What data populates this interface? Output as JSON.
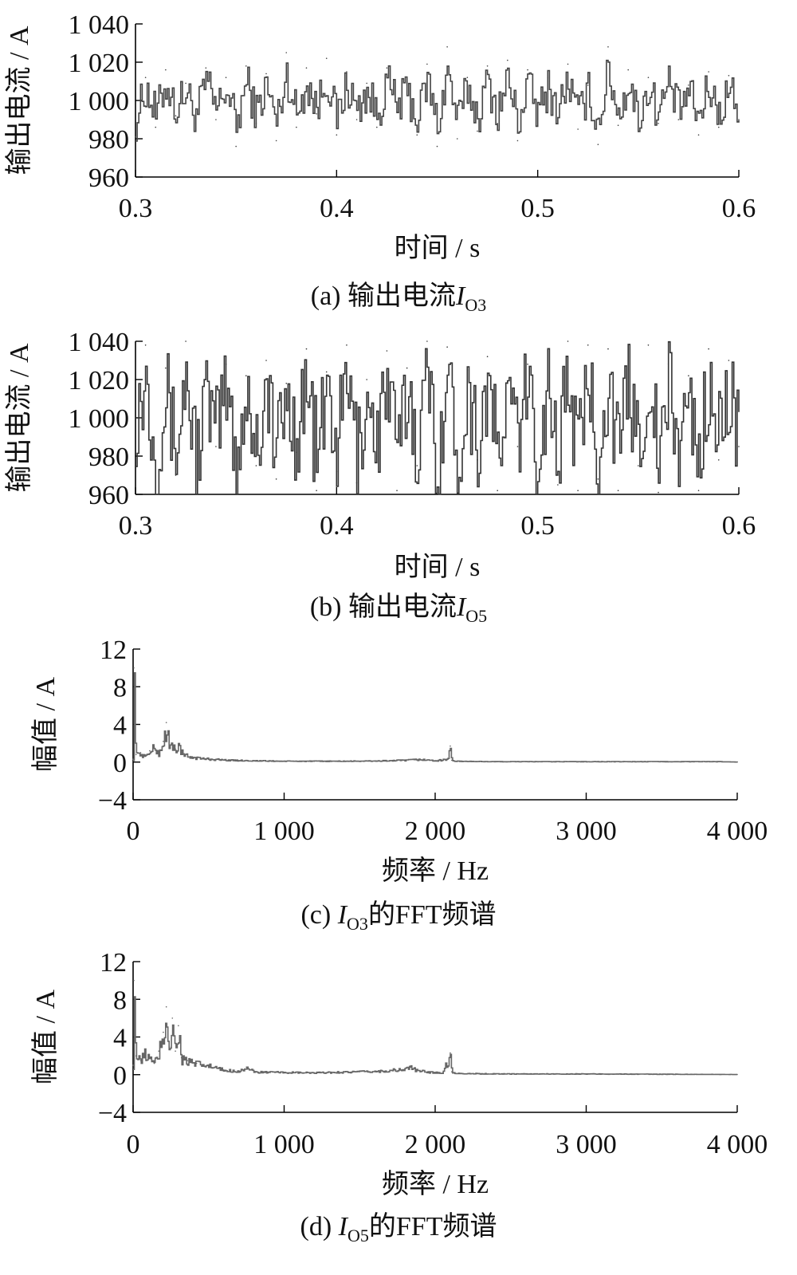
{
  "chart_data": [
    {
      "id": "a",
      "type": "line",
      "caption": {
        "prefix": "(a)  输出电流",
        "symbol": "I",
        "subscript": "O3",
        "suffix": ""
      },
      "xlabel": "时间 / s",
      "ylabel": "输出电流 / A",
      "xlim": [
        0.3,
        0.6
      ],
      "ylim": [
        960,
        1040
      ],
      "xticks": [
        0.3,
        0.4,
        0.5,
        0.6
      ],
      "xtick_labels": [
        "0.3",
        "0.4",
        "0.5",
        "0.6"
      ],
      "yticks": [
        960,
        980,
        1000,
        1020,
        1040
      ],
      "ytick_labels": [
        "960",
        "980",
        "1 000",
        "1 020",
        "1 040"
      ],
      "line_color": "#444444",
      "series": [
        {
          "x": [
            0.3,
            0.305,
            0.31,
            0.315,
            0.32,
            0.325,
            0.33,
            0.335,
            0.34,
            0.345,
            0.35,
            0.355,
            0.36,
            0.365,
            0.37,
            0.375,
            0.38,
            0.385,
            0.39,
            0.395,
            0.4,
            0.405,
            0.41,
            0.415,
            0.42,
            0.425,
            0.43,
            0.435,
            0.44,
            0.445,
            0.45,
            0.455,
            0.46,
            0.465,
            0.47,
            0.475,
            0.48,
            0.485,
            0.49,
            0.495,
            0.5,
            0.505,
            0.51,
            0.515,
            0.52,
            0.525,
            0.53,
            0.535,
            0.54,
            0.545,
            0.55,
            0.555,
            0.56,
            0.565,
            0.57,
            0.575,
            0.58,
            0.585,
            0.59,
            0.595,
            0.6
          ],
          "values": [
            981,
            1012,
            986,
            1016,
            992,
            1009,
            985,
            1017,
            990,
            1012,
            976,
            1018,
            988,
            1014,
            979,
            1025,
            986,
            1017,
            993,
            1022,
            982,
            1015,
            990,
            1009,
            986,
            1017,
            994,
            1008,
            982,
            1019,
            976,
            1028,
            980,
            1012,
            984,
            1018,
            988,
            1021,
            979,
            1016,
            987,
            1012,
            991,
            1019,
            985,
            1008,
            977,
            1028,
            987,
            1016,
            984,
            1012,
            988,
            1017,
            990,
            1008,
            982,
            1015,
            986,
            1013,
            990
          ]
        }
      ]
    },
    {
      "id": "b",
      "type": "line",
      "caption": {
        "prefix": "(b)  输出电流",
        "symbol": "I",
        "subscript": "O5",
        "suffix": ""
      },
      "xlabel": "时间 / s",
      "ylabel": "输出电流 / A",
      "xlim": [
        0.3,
        0.6
      ],
      "ylim": [
        960,
        1040
      ],
      "xticks": [
        0.3,
        0.4,
        0.5,
        0.6
      ],
      "xtick_labels": [
        "0.3",
        "0.4",
        "0.5",
        "0.6"
      ],
      "yticks": [
        960,
        980,
        1000,
        1020,
        1040
      ],
      "ytick_labels": [
        "960",
        "980",
        "1 000",
        "1 020",
        "1 040"
      ],
      "line_color": "#333333",
      "series": [
        {
          "x": [
            0.3,
            0.305,
            0.31,
            0.315,
            0.32,
            0.325,
            0.33,
            0.335,
            0.34,
            0.345,
            0.35,
            0.355,
            0.36,
            0.365,
            0.37,
            0.375,
            0.38,
            0.385,
            0.39,
            0.395,
            0.4,
            0.405,
            0.41,
            0.415,
            0.42,
            0.425,
            0.43,
            0.435,
            0.44,
            0.445,
            0.45,
            0.455,
            0.46,
            0.465,
            0.47,
            0.475,
            0.48,
            0.485,
            0.49,
            0.495,
            0.5,
            0.505,
            0.51,
            0.515,
            0.52,
            0.525,
            0.53,
            0.535,
            0.54,
            0.545,
            0.55,
            0.555,
            0.56,
            0.565,
            0.57,
            0.575,
            0.58,
            0.585,
            0.59,
            0.595,
            0.6
          ],
          "values": [
            1000,
            1038,
            962,
            1026,
            970,
            1040,
            962,
            1020,
            985,
            1028,
            960,
            1022,
            975,
            1030,
            968,
            1018,
            982,
            1036,
            962,
            1024,
            972,
            1038,
            966,
            1020,
            980,
            1035,
            962,
            1026,
            975,
            1040,
            961,
            1037,
            964,
            1025,
            978,
            1032,
            962,
            1018,
            985,
            1028,
            960,
            1035,
            965,
            1040,
            962,
            1038,
            968,
            1036,
            962,
            1030,
            975,
            1038,
            961,
            1028,
            970,
            1022,
            962,
            1036,
            978,
            1030,
            985
          ]
        }
      ]
    },
    {
      "id": "c",
      "type": "line",
      "caption": {
        "prefix": "(c)  ",
        "symbol": "I",
        "subscript": "O3",
        "suffix": "的FFT频谱"
      },
      "xlabel": "频率 / Hz",
      "ylabel": "幅值 / A",
      "xlim": [
        0,
        4000
      ],
      "ylim": [
        -4,
        12
      ],
      "xticks": [
        0,
        1000,
        2000,
        3000,
        4000
      ],
      "xtick_labels": [
        "0",
        "1 000",
        "2 000",
        "3 000",
        "4 000"
      ],
      "yticks": [
        -4,
        0,
        4,
        8,
        12
      ],
      "ytick_labels": [
        "−4",
        "0",
        "4",
        "8",
        "12"
      ],
      "line_color": "#666666",
      "series": [
        {
          "x": [
            0,
            5,
            20,
            50,
            80,
            110,
            140,
            170,
            200,
            220,
            240,
            260,
            280,
            300,
            330,
            380,
            450,
            550,
            650,
            800,
            1000,
            1200,
            1400,
            1600,
            1800,
            1900,
            2000,
            2080,
            2100,
            2110,
            2130,
            2200,
            2400,
            2600,
            3000,
            3500,
            3900,
            4000
          ],
          "values": [
            0.3,
            10,
            0.8,
            1.0,
            0.6,
            1.2,
            1.6,
            1.0,
            2.2,
            4.2,
            1.5,
            2.0,
            1.4,
            1.9,
            0.8,
            0.6,
            0.4,
            0.3,
            0.2,
            0.15,
            0.1,
            0.1,
            0.1,
            0.12,
            0.2,
            0.3,
            0.15,
            0.3,
            1.7,
            0.2,
            0.1,
            0.08,
            0.05,
            0.05,
            0.05,
            0.05,
            0.05,
            0.0
          ]
        }
      ]
    },
    {
      "id": "d",
      "type": "line",
      "caption": {
        "prefix": "(d)  ",
        "symbol": "I",
        "subscript": "O5",
        "suffix": "的FFT频谱"
      },
      "xlabel": "频率 / Hz",
      "ylabel": "幅值 / A",
      "xlim": [
        0,
        4000
      ],
      "ylim": [
        -4,
        12
      ],
      "xticks": [
        0,
        1000,
        2000,
        3000,
        4000
      ],
      "xtick_labels": [
        "0",
        "1 000",
        "2 000",
        "3 000",
        "4 000"
      ],
      "yticks": [
        -4,
        0,
        4,
        8,
        12
      ],
      "ytick_labels": [
        "−4",
        "0",
        "4",
        "8",
        "12"
      ],
      "line_color": "#666666",
      "series": [
        {
          "x": [
            0,
            5,
            20,
            50,
            80,
            110,
            140,
            170,
            200,
            220,
            240,
            260,
            280,
            300,
            320,
            360,
            420,
            500,
            600,
            700,
            750,
            800,
            1000,
            1200,
            1400,
            1600,
            1800,
            1830,
            1870,
            1950,
            2050,
            2100,
            2110,
            2130,
            2300,
            2600,
            3000,
            3500,
            4000
          ],
          "values": [
            1.0,
            10,
            2.0,
            1.5,
            2.5,
            1.8,
            1.2,
            2.5,
            4.5,
            7.2,
            3.0,
            6.0,
            2.5,
            5.2,
            1.8,
            1.5,
            1.2,
            1.0,
            0.5,
            0.4,
            0.8,
            0.3,
            0.25,
            0.2,
            0.3,
            0.35,
            0.6,
            0.9,
            0.5,
            0.3,
            0.2,
            2.3,
            0.3,
            0.15,
            0.1,
            0.08,
            0.08,
            0.05,
            0.02
          ]
        }
      ]
    }
  ]
}
